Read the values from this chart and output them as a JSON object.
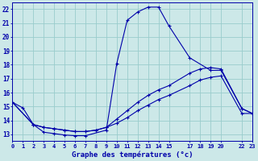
{
  "title": "Graphe des températures (°c)",
  "bg": "#cce8e8",
  "grid_color": "#99cccc",
  "line_color": "#0000aa",
  "xlim": [
    0,
    23
  ],
  "ylim": [
    12.5,
    22.5
  ],
  "yticks": [
    13,
    14,
    15,
    16,
    17,
    18,
    19,
    20,
    21,
    22
  ],
  "xtick_pos": [
    0,
    1,
    2,
    3,
    4,
    5,
    6,
    7,
    8,
    9,
    10,
    11,
    12,
    13,
    14,
    15,
    17,
    18,
    19,
    20,
    22,
    23
  ],
  "xtick_lbl": [
    "0",
    "1",
    "2",
    "3",
    "4",
    "5",
    "6",
    "7",
    "8",
    "9",
    "10",
    "11",
    "12",
    "13",
    "14",
    "15",
    "17",
    "18",
    "19",
    "20",
    "22",
    "23"
  ],
  "s1_x": [
    0,
    1,
    2,
    3,
    4,
    5,
    6,
    7,
    9,
    10,
    11,
    12,
    13,
    14,
    15,
    17,
    19,
    20,
    22,
    23
  ],
  "s1_y": [
    15.3,
    14.9,
    13.7,
    13.15,
    13.05,
    12.95,
    12.9,
    12.9,
    13.3,
    18.1,
    21.2,
    21.8,
    22.15,
    22.15,
    20.8,
    18.5,
    17.6,
    17.6,
    14.85,
    14.5
  ],
  "s2_x": [
    0,
    2,
    3,
    4,
    5,
    6,
    7,
    8,
    9,
    10,
    11,
    12,
    13,
    14,
    15,
    17,
    18,
    19,
    20,
    22,
    23
  ],
  "s2_y": [
    15.3,
    13.7,
    13.5,
    13.4,
    13.3,
    13.2,
    13.2,
    13.3,
    13.5,
    14.1,
    14.7,
    15.3,
    15.8,
    16.2,
    16.5,
    17.4,
    17.7,
    17.8,
    17.7,
    14.85,
    14.5
  ],
  "s3_x": [
    0,
    2,
    3,
    4,
    5,
    6,
    7,
    8,
    9,
    10,
    11,
    12,
    13,
    14,
    15,
    17,
    18,
    19,
    20,
    22,
    23
  ],
  "s3_y": [
    15.3,
    13.7,
    13.5,
    13.4,
    13.3,
    13.2,
    13.2,
    13.3,
    13.5,
    13.8,
    14.2,
    14.7,
    15.1,
    15.5,
    15.8,
    16.5,
    16.9,
    17.1,
    17.2,
    14.5,
    14.5
  ]
}
